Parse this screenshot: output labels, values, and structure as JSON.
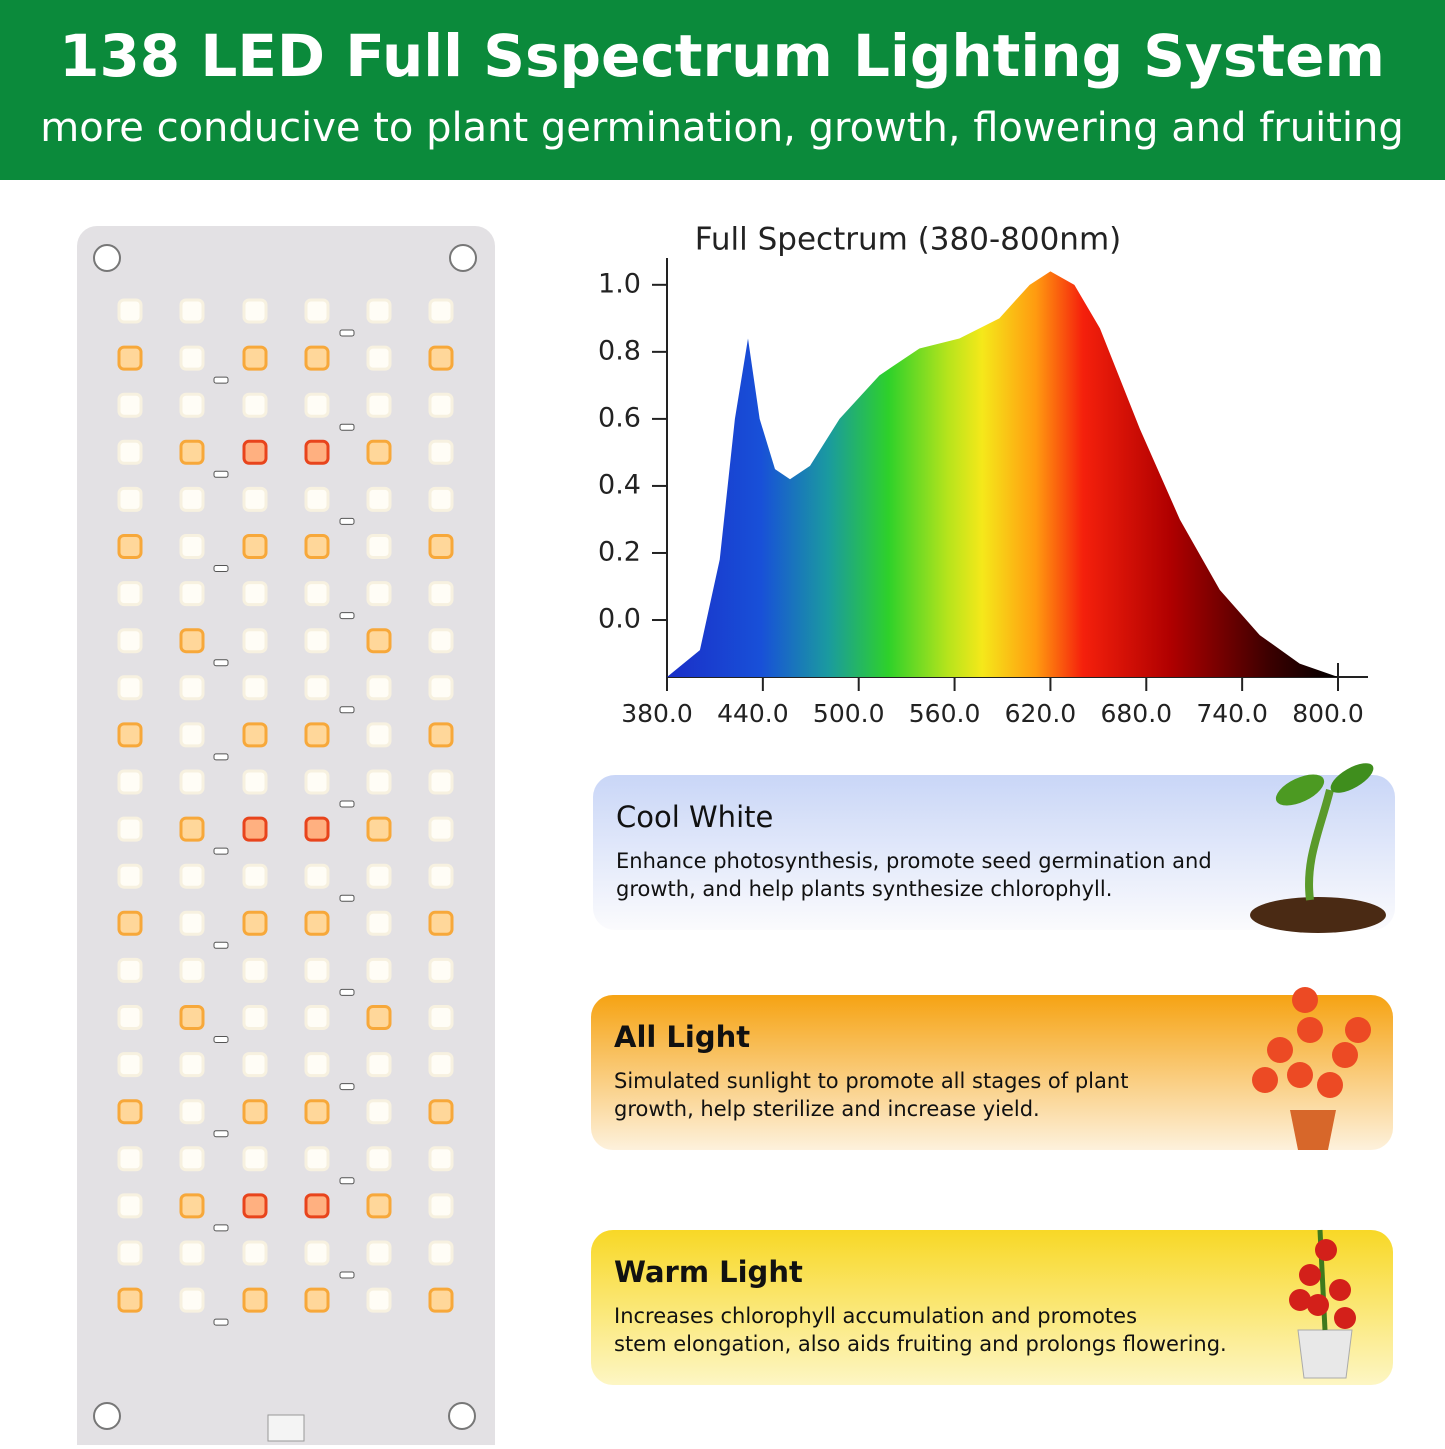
{
  "header": {
    "title": "138 LED Full Sspectrum Lighting System",
    "subtitle": "more conducive to plant germination, growth, flowering and fruiting"
  },
  "chart_data": {
    "type": "area",
    "title": "Full Spectrum (380-800nm)",
    "x": [
      380,
      400.6,
      413,
      422.5,
      430.7,
      438,
      447.6,
      457,
      469.5,
      488,
      513,
      538,
      563,
      588,
      607,
      620,
      635,
      651,
      676,
      701,
      726,
      751,
      776,
      800
    ],
    "values": [
      -0.17,
      -0.09,
      0.18,
      0.6,
      0.84,
      0.6,
      0.45,
      0.42,
      0.46,
      0.6,
      0.73,
      0.81,
      0.84,
      0.9,
      1.0,
      1.04,
      1.0,
      0.87,
      0.57,
      0.3,
      0.09,
      -0.045,
      -0.13,
      -0.17
    ],
    "xlim": [
      380,
      800
    ],
    "ylim": [
      -0.17,
      1.08
    ],
    "xticks": [
      {
        "value": 380,
        "label": "380.0"
      },
      {
        "value": 440,
        "label": "440.0"
      },
      {
        "value": 500,
        "label": "500.0"
      },
      {
        "value": 560,
        "label": "560.0"
      },
      {
        "value": 620,
        "label": "620.0"
      },
      {
        "value": 680,
        "label": "680.0"
      },
      {
        "value": 740,
        "label": "740.0"
      },
      {
        "value": 800,
        "label": "800.0"
      }
    ],
    "yticks": [
      {
        "value": 0,
        "label": "0.0"
      },
      0.2,
      0.4,
      0.6,
      0.8,
      {
        "value": 1,
        "label": "1.0"
      }
    ]
  },
  "cards": [
    {
      "title": "Cool White",
      "lines": [
        "Enhance photosynthesis, promote seed germination and",
        "growth, and help plants synthesize chlorophyll."
      ]
    },
    {
      "title": "All Light",
      "lines": [
        "Simulated sunlight to promote all stages of plant",
        "growth, help sterilize and increase yield."
      ]
    },
    {
      "title": "Warm Light",
      "lines": [
        "Increases chlorophyll accumulation and promotes",
        "stem elongation, also aids fruiting and prolongs flowering."
      ]
    }
  ]
}
